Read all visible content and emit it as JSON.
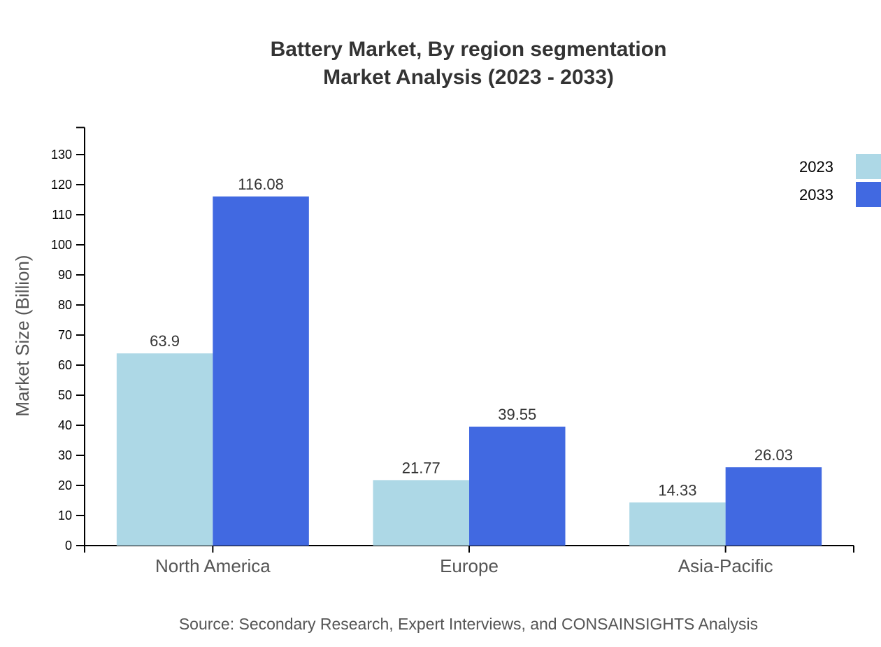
{
  "chart_data": {
    "type": "bar",
    "title": "Battery Market, By region segmentation",
    "subtitle": "Market Analysis (2023 - 2033)",
    "xlabel": "",
    "ylabel": "Market Size (Billion)",
    "ylim": [
      0,
      139
    ],
    "yticks": [
      0,
      10,
      20,
      30,
      40,
      50,
      60,
      70,
      80,
      90,
      100,
      110,
      120,
      130
    ],
    "categories": [
      "North America",
      "Europe",
      "Asia-Pacific"
    ],
    "series": [
      {
        "name": "2023",
        "color": "#ADD8E6",
        "values": [
          63.9,
          21.77,
          14.33
        ],
        "labels": [
          "63.9",
          "21.77",
          "14.33"
        ]
      },
      {
        "name": "2033",
        "color": "#4169E1",
        "values": [
          116.08,
          39.55,
          26.03
        ],
        "labels": [
          "116.08",
          "39.55",
          "26.03"
        ]
      }
    ],
    "legend": "top-right",
    "grid": false,
    "source": "Source: Secondary Research, Expert Interviews, and CONSAINSIGHTS Analysis"
  }
}
